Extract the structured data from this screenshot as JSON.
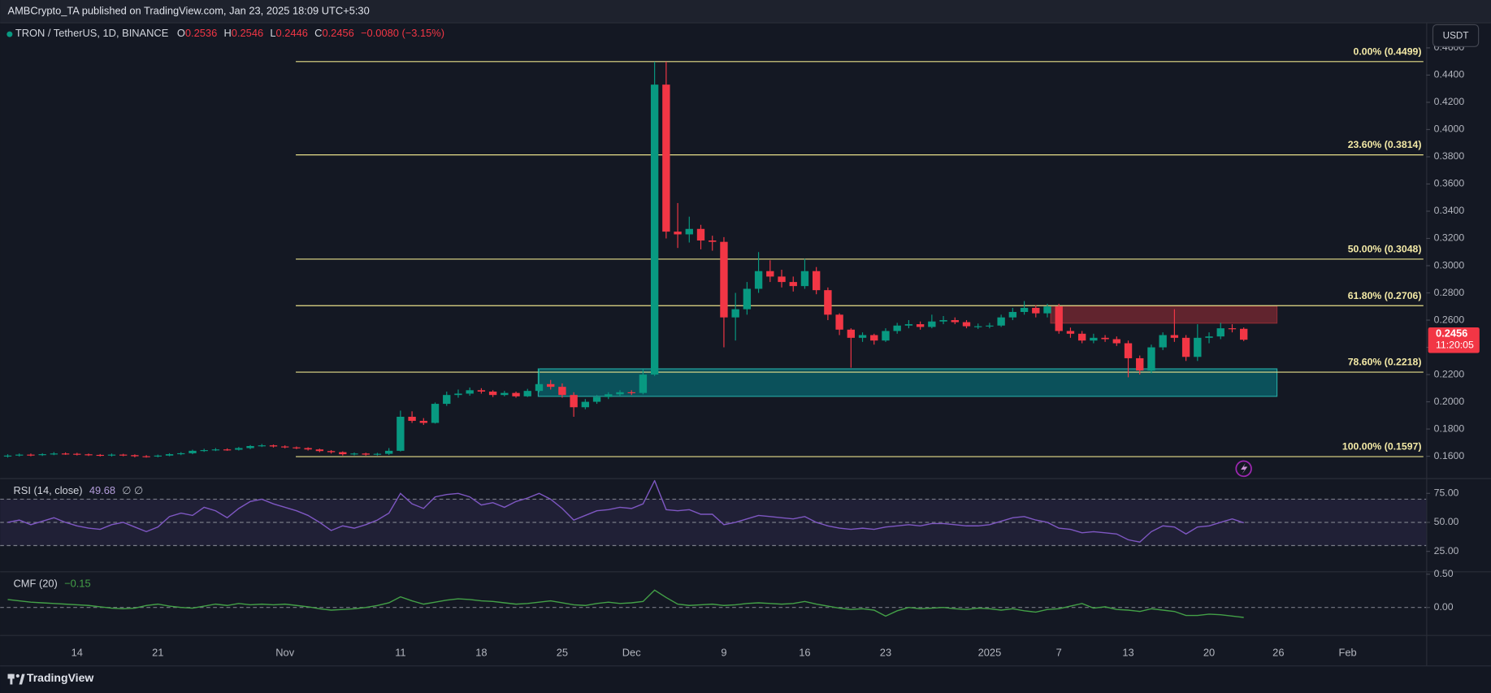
{
  "header": "AMBCrypto_TA published on TradingView.com, Jan 23, 2025 18:09 UTC+5:30",
  "footer": "TradingView",
  "chart_data": [
    {
      "type": "candlestick",
      "title": "TRON / TetherUS, 1D, BINANCE",
      "currency": "USDT",
      "ohlc_keys": [
        "O",
        "H",
        "L",
        "C"
      ],
      "change": "−0.0080 (−3.15%)",
      "countdown": "11:20:05",
      "up_color": "#089981",
      "down_color": "#f23645",
      "ylim": [
        0.1439,
        0.4784
      ],
      "yticks": [
        {
          "value": 0.16,
          "label": "0.1600"
        },
        {
          "value": 0.18,
          "label": "0.1800"
        },
        {
          "value": 0.2,
          "label": "0.2000"
        },
        {
          "value": 0.22,
          "label": "0.2200"
        },
        {
          "value": 0.24,
          "label": "0.2400"
        },
        {
          "value": 0.26,
          "label": "0.2600"
        },
        {
          "value": 0.28,
          "label": "0.2800"
        },
        {
          "value": 0.3,
          "label": "0.3000"
        },
        {
          "value": 0.32,
          "label": "0.3200"
        },
        {
          "value": 0.34,
          "label": "0.3400"
        },
        {
          "value": 0.36,
          "label": "0.3600"
        },
        {
          "value": 0.38,
          "label": "0.3800"
        },
        {
          "value": 0.4,
          "label": "0.4000"
        },
        {
          "value": 0.42,
          "label": "0.4200"
        },
        {
          "value": 0.44,
          "label": "0.4400"
        },
        {
          "value": 0.46,
          "label": "0.4600"
        }
      ],
      "fib_color": "#e8df8a",
      "fib_label_color": "#f3e9a6",
      "fib": [
        {
          "label": "0.00% (0.4499)",
          "value": 0.4499
        },
        {
          "label": "23.60% (0.3814)",
          "value": 0.3814
        },
        {
          "label": "50.00% (0.3048)",
          "value": 0.3048
        },
        {
          "label": "61.80% (0.2706)",
          "value": 0.2706
        },
        {
          "label": "78.60% (0.2218)",
          "value": 0.2218
        },
        {
          "label": "100.00% (0.1597)",
          "value": 0.1597
        }
      ],
      "zones": [
        {
          "low": 0.204,
          "high": 0.2242,
          "color": "rgba(0,150,160,0.45)",
          "border": "#26a6a0"
        },
        {
          "low": 0.2578,
          "high": 0.2703,
          "color": "rgba(190,50,60,0.45)",
          "border": "#8c2c36"
        }
      ],
      "categories": [
        null,
        null,
        null,
        null,
        null,
        null,
        "14",
        null,
        null,
        null,
        null,
        null,
        null,
        "21",
        null,
        null,
        null,
        null,
        null,
        null,
        null,
        null,
        null,
        null,
        "Nov",
        null,
        null,
        null,
        null,
        null,
        null,
        null,
        null,
        null,
        "11",
        null,
        null,
        null,
        null,
        null,
        null,
        "18",
        null,
        null,
        null,
        null,
        null,
        null,
        "25",
        null,
        null,
        null,
        null,
        null,
        "Dec",
        null,
        null,
        null,
        null,
        null,
        null,
        null,
        "9",
        null,
        null,
        null,
        null,
        null,
        null,
        "16",
        null,
        null,
        null,
        null,
        null,
        null,
        "23",
        null,
        null,
        null,
        null,
        null,
        null,
        null,
        null,
        "2025",
        null,
        null,
        null,
        null,
        null,
        "7",
        null,
        null,
        null,
        null,
        null,
        "13",
        null,
        null,
        null,
        null,
        null,
        null,
        "20",
        null,
        null,
        null,
        null,
        null,
        "26",
        null,
        null,
        null,
        null,
        null,
        "Feb",
        null,
        null,
        null,
        null,
        null,
        null
      ],
      "open": [
        0.16,
        0.1605,
        0.1612,
        0.1608,
        0.1615,
        0.162,
        0.1618,
        0.1614,
        0.161,
        0.1605,
        0.1612,
        0.1608,
        0.16,
        0.1598,
        0.1605,
        0.1615,
        0.1622,
        0.164,
        0.1645,
        0.165,
        0.1648,
        0.166,
        0.1675,
        0.168,
        0.1672,
        0.1665,
        0.166,
        0.165,
        0.1638,
        0.163,
        0.1615,
        0.162,
        0.1612,
        0.1618,
        0.164,
        0.189,
        0.186,
        0.1845,
        0.1985,
        0.205,
        0.206,
        0.2085,
        0.2075,
        0.205,
        0.2065,
        0.204,
        0.208,
        0.213,
        0.211,
        0.205,
        0.196,
        0.2,
        0.2035,
        0.2055,
        0.207,
        0.2065,
        0.22,
        0.433,
        0.325,
        0.323,
        0.327,
        0.3185,
        0.3175,
        0.262,
        0.268,
        0.283,
        0.296,
        0.292,
        0.288,
        0.285,
        0.296,
        0.282,
        0.264,
        0.253,
        0.247,
        0.249,
        0.245,
        0.252,
        0.256,
        0.257,
        0.255,
        0.259,
        0.26,
        0.2585,
        0.2555,
        0.2555,
        0.256,
        0.262,
        0.266,
        0.269,
        0.265,
        0.27,
        0.252,
        0.25,
        0.245,
        0.247,
        0.246,
        0.243,
        0.232,
        0.223,
        0.24,
        0.249,
        0.247,
        0.233,
        0.247,
        0.248,
        0.254,
        0.2536,
        null,
        null,
        null,
        null,
        null,
        null,
        null,
        null,
        null,
        null,
        null,
        null,
        null,
        null,
        null
      ],
      "high": [
        0.1615,
        0.162,
        0.162,
        0.1622,
        0.163,
        0.1628,
        0.1625,
        0.162,
        0.1616,
        0.162,
        0.1618,
        0.1614,
        0.1608,
        0.1612,
        0.1622,
        0.163,
        0.1648,
        0.1655,
        0.166,
        0.1658,
        0.1668,
        0.1682,
        0.169,
        0.1686,
        0.168,
        0.1672,
        0.1666,
        0.1656,
        0.1645,
        0.1636,
        0.1628,
        0.1626,
        0.1625,
        0.166,
        0.1935,
        0.193,
        0.188,
        0.1995,
        0.2075,
        0.209,
        0.2105,
        0.21,
        0.2085,
        0.208,
        0.2075,
        0.2095,
        0.2245,
        0.216,
        0.2135,
        0.207,
        0.202,
        0.205,
        0.207,
        0.2085,
        0.2085,
        0.224,
        0.4499,
        0.4499,
        0.346,
        0.336,
        0.33,
        0.322,
        0.321,
        0.28,
        0.288,
        0.31,
        0.304,
        0.297,
        0.292,
        0.305,
        0.299,
        0.284,
        0.265,
        0.254,
        0.251,
        0.25,
        0.254,
        0.258,
        0.26,
        0.259,
        0.264,
        0.263,
        0.262,
        0.26,
        0.2575,
        0.258,
        0.264,
        0.269,
        0.274,
        0.271,
        0.272,
        0.272,
        0.2545,
        0.252,
        0.25,
        0.249,
        0.248,
        0.245,
        0.234,
        0.242,
        0.251,
        0.268,
        0.249,
        0.257,
        0.251,
        0.258,
        0.257,
        0.2546,
        null,
        null,
        null,
        null,
        null,
        null,
        null,
        null,
        null,
        null,
        null,
        null,
        null,
        null,
        null
      ],
      "low": [
        0.159,
        0.1598,
        0.16,
        0.1602,
        0.1608,
        0.161,
        0.1606,
        0.1602,
        0.1598,
        0.1598,
        0.16,
        0.1592,
        0.159,
        0.1592,
        0.16,
        0.1608,
        0.1615,
        0.1632,
        0.1638,
        0.164,
        0.1642,
        0.1652,
        0.1668,
        0.1664,
        0.1658,
        0.1652,
        0.1642,
        0.163,
        0.162,
        0.1605,
        0.1606,
        0.1604,
        0.1605,
        0.161,
        0.1635,
        0.1845,
        0.183,
        0.184,
        0.197,
        0.203,
        0.2045,
        0.206,
        0.2035,
        0.204,
        0.203,
        0.2035,
        0.207,
        0.209,
        0.203,
        0.189,
        0.1945,
        0.1985,
        0.202,
        0.2045,
        0.205,
        0.2055,
        0.219,
        0.32,
        0.313,
        0.317,
        0.312,
        0.311,
        0.24,
        0.245,
        0.264,
        0.28,
        0.288,
        0.284,
        0.281,
        0.283,
        0.279,
        0.26,
        0.249,
        0.225,
        0.244,
        0.242,
        0.244,
        0.25,
        0.254,
        0.253,
        0.254,
        0.257,
        0.257,
        0.254,
        0.2535,
        0.254,
        0.255,
        0.26,
        0.264,
        0.262,
        0.262,
        0.25,
        0.247,
        0.243,
        0.243,
        0.244,
        0.241,
        0.218,
        0.22,
        0.221,
        0.238,
        0.244,
        0.23,
        0.23,
        0.243,
        0.246,
        0.251,
        0.2446,
        null,
        null,
        null,
        null,
        null,
        null,
        null,
        null,
        null,
        null,
        null,
        null,
        null,
        null,
        null
      ],
      "close": [
        0.1605,
        0.1612,
        0.1608,
        0.1615,
        0.162,
        0.1618,
        0.1614,
        0.161,
        0.1605,
        0.1612,
        0.1608,
        0.16,
        0.1598,
        0.1605,
        0.1615,
        0.1622,
        0.164,
        0.1645,
        0.165,
        0.1648,
        0.166,
        0.1675,
        0.168,
        0.1672,
        0.1665,
        0.166,
        0.165,
        0.1638,
        0.163,
        0.1615,
        0.162,
        0.1612,
        0.1618,
        0.164,
        0.189,
        0.186,
        0.1845,
        0.1985,
        0.205,
        0.206,
        0.2085,
        0.2075,
        0.205,
        0.2065,
        0.204,
        0.208,
        0.213,
        0.211,
        0.205,
        0.196,
        0.2,
        0.2035,
        0.2055,
        0.207,
        0.2065,
        0.22,
        0.433,
        0.325,
        0.323,
        0.327,
        0.3185,
        0.3175,
        0.262,
        0.268,
        0.283,
        0.296,
        0.292,
        0.288,
        0.285,
        0.296,
        0.282,
        0.264,
        0.253,
        0.247,
        0.249,
        0.245,
        0.252,
        0.256,
        0.257,
        0.255,
        0.259,
        0.26,
        0.2585,
        0.2555,
        0.2555,
        0.256,
        0.262,
        0.266,
        0.269,
        0.265,
        0.27,
        0.252,
        0.25,
        0.245,
        0.247,
        0.246,
        0.243,
        0.232,
        0.223,
        0.24,
        0.249,
        0.247,
        0.233,
        0.247,
        0.248,
        0.254,
        0.2536,
        0.2456,
        null,
        null,
        null,
        null,
        null,
        null,
        null,
        null,
        null,
        null,
        null,
        null,
        null,
        null,
        null
      ]
    },
    {
      "type": "line",
      "title": "RSI (14, close)",
      "na_label": "∅ ∅",
      "color": "#7e57c2",
      "band_fill": "rgba(126,87,194,0.12)",
      "ylim": [
        8.6,
        86.5
      ],
      "yticks": [
        {
          "value": 75,
          "label": "75.00"
        },
        {
          "value": 50,
          "label": "50.00"
        },
        {
          "value": 25,
          "label": "25.00"
        }
      ],
      "bands": [
        30,
        50,
        70
      ],
      "values": [
        50,
        52,
        48,
        51,
        54,
        50,
        47,
        45,
        44,
        48,
        50,
        46,
        42,
        46,
        55,
        58,
        56,
        63,
        60,
        54,
        62,
        68,
        70,
        66,
        63,
        60,
        56,
        50,
        43,
        47,
        45,
        48,
        52,
        58,
        75,
        66,
        62,
        72,
        74,
        75,
        72,
        65,
        67,
        63,
        68,
        71,
        75,
        70,
        62,
        52,
        56,
        60,
        61,
        63,
        62,
        66,
        86,
        61,
        60,
        61,
        57,
        57,
        48,
        50,
        53,
        56,
        55,
        54,
        53,
        55,
        50,
        47,
        45,
        44,
        45,
        44,
        46,
        47,
        48,
        47,
        49,
        49,
        48,
        47,
        47,
        48,
        51,
        54,
        55,
        52,
        50,
        45,
        44,
        41,
        42,
        41,
        40,
        35,
        33,
        42,
        47,
        46,
        40,
        46,
        47,
        50,
        53,
        49.68,
        null,
        null,
        null,
        null,
        null,
        null,
        null,
        null,
        null,
        null,
        null,
        null,
        null,
        null,
        null
      ]
    },
    {
      "type": "line",
      "title": "CMF (20)",
      "value_label": "−0.15",
      "color": "#43a047",
      "ylim": [
        -0.414,
        0.529
      ],
      "yticks": [
        {
          "value": 0.5,
          "label": "0.50"
        },
        {
          "value": 0,
          "label": "0.00"
        }
      ],
      "bands": [
        0
      ],
      "values": [
        0.12,
        0.1,
        0.08,
        0.07,
        0.06,
        0.05,
        0.04,
        0.03,
        0.01,
        -0.01,
        -0.02,
        -0.01,
        0.03,
        0.05,
        0.02,
        0.0,
        -0.01,
        0.02,
        0.05,
        0.03,
        0.06,
        0.04,
        0.05,
        0.04,
        0.05,
        0.03,
        0.01,
        -0.02,
        -0.04,
        -0.03,
        -0.02,
        0.0,
        0.03,
        0.07,
        0.16,
        0.1,
        0.05,
        0.08,
        0.11,
        0.13,
        0.12,
        0.1,
        0.09,
        0.07,
        0.05,
        0.06,
        0.08,
        0.1,
        0.07,
        0.04,
        0.03,
        0.06,
        0.08,
        0.06,
        0.07,
        0.09,
        0.26,
        0.15,
        0.05,
        0.03,
        0.04,
        0.05,
        0.03,
        0.04,
        0.06,
        0.07,
        0.06,
        0.05,
        0.06,
        0.09,
        0.05,
        0.02,
        -0.01,
        -0.03,
        -0.02,
        -0.04,
        -0.13,
        -0.05,
        0.0,
        -0.02,
        -0.01,
        0.0,
        -0.02,
        -0.03,
        -0.01,
        -0.02,
        -0.04,
        -0.02,
        -0.05,
        -0.07,
        -0.03,
        -0.02,
        0.02,
        0.06,
        -0.01,
        0.01,
        -0.03,
        -0.04,
        -0.06,
        -0.02,
        -0.04,
        -0.06,
        -0.12,
        -0.12,
        -0.1,
        -0.11,
        -0.13,
        -0.15,
        null,
        null,
        null,
        null,
        null,
        null,
        null,
        null,
        null,
        null,
        null,
        null,
        null,
        null,
        null
      ]
    }
  ]
}
